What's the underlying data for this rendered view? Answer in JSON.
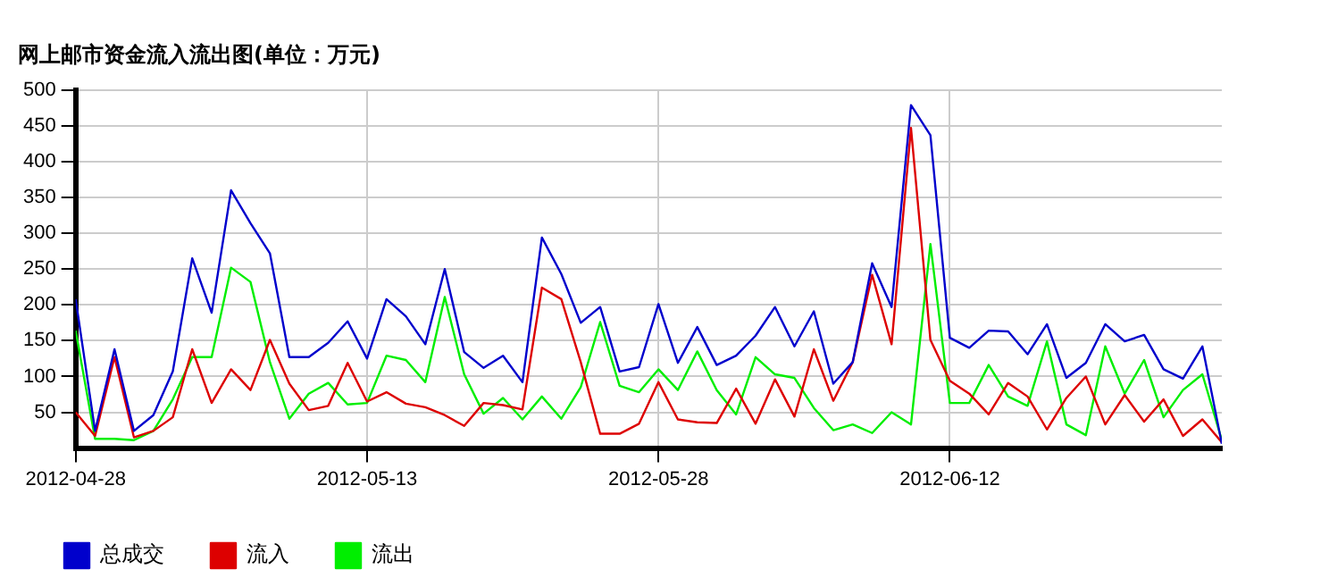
{
  "chart_data": {
    "type": "line",
    "title": "网上邮市资金流入流出图(单位：万元)",
    "x": [
      "2012-04-28",
      "2012-04-29",
      "2012-04-30",
      "2012-05-01",
      "2012-05-02",
      "2012-05-03",
      "2012-05-04",
      "2012-05-05",
      "2012-05-06",
      "2012-05-07",
      "2012-05-08",
      "2012-05-09",
      "2012-05-10",
      "2012-05-11",
      "2012-05-12",
      "2012-05-13",
      "2012-05-14",
      "2012-05-15",
      "2012-05-16",
      "2012-05-17",
      "2012-05-18",
      "2012-05-19",
      "2012-05-20",
      "2012-05-21",
      "2012-05-22",
      "2012-05-23",
      "2012-05-24",
      "2012-05-25",
      "2012-05-26",
      "2012-05-27",
      "2012-05-28",
      "2012-05-29",
      "2012-05-30",
      "2012-05-31",
      "2012-06-01",
      "2012-06-02",
      "2012-06-03",
      "2012-06-04",
      "2012-06-05",
      "2012-06-06",
      "2012-06-07",
      "2012-06-08",
      "2012-06-09",
      "2012-06-10",
      "2012-06-11",
      "2012-06-12",
      "2012-06-13",
      "2012-06-14",
      "2012-06-15",
      "2012-06-16",
      "2012-06-17",
      "2012-06-18",
      "2012-06-19",
      "2012-06-20",
      "2012-06-21",
      "2012-06-22",
      "2012-06-23",
      "2012-06-24",
      "2012-06-25",
      "2012-06-26"
    ],
    "series": [
      {
        "name": "总成交",
        "color": "#0000cc",
        "values": [
          208,
          24,
          138,
          24,
          46,
          107,
          265,
          189,
          360,
          314,
          272,
          127,
          127,
          147,
          177,
          125,
          208,
          184,
          145,
          250,
          134,
          112,
          129,
          92,
          294,
          243,
          175,
          197,
          107,
          113,
          201,
          119,
          169,
          116,
          129,
          157,
          197,
          142,
          191,
          90,
          120,
          258,
          197,
          479,
          437,
          154,
          140,
          164,
          163,
          131,
          173,
          98,
          119,
          173,
          149,
          158,
          110,
          97,
          142,
          6
        ]
      },
      {
        "name": "流入",
        "color": "#dd0000",
        "values": [
          50,
          17,
          127,
          15,
          24,
          43,
          138,
          63,
          110,
          81,
          151,
          90,
          53,
          59,
          119,
          65,
          78,
          62,
          57,
          46,
          31,
          63,
          60,
          54,
          224,
          208,
          120,
          20,
          20,
          34,
          92,
          40,
          36,
          35,
          83,
          34,
          96,
          44,
          138,
          66,
          120,
          242,
          145,
          447,
          151,
          94,
          76,
          47,
          91,
          72,
          26,
          70,
          100,
          33,
          74,
          37,
          68,
          17,
          40,
          8
        ]
      },
      {
        "name": "流出",
        "color": "#00ee00",
        "values": [
          164,
          13,
          13,
          11,
          24,
          68,
          127,
          127,
          252,
          232,
          120,
          41,
          76,
          91,
          61,
          63,
          129,
          123,
          92,
          211,
          103,
          48,
          70,
          40,
          72,
          41,
          85,
          176,
          87,
          78,
          110,
          81,
          135,
          81,
          47,
          127,
          103,
          98,
          56,
          25,
          33,
          21,
          50,
          33,
          285,
          63,
          63,
          116,
          72,
          59,
          149,
          33,
          18,
          142,
          76,
          123,
          43,
          81,
          103,
          11
        ]
      }
    ],
    "xlim": [
      "2012-04-28",
      "2012-06-26"
    ],
    "xticks": [
      "2012-04-28",
      "2012-05-13",
      "2012-05-28",
      "2012-06-12"
    ],
    "ylim": [
      0,
      500
    ],
    "yticks": [
      50,
      100,
      150,
      200,
      250,
      300,
      350,
      400,
      450,
      500
    ],
    "grid": true,
    "legend": "bottom",
    "marker": "none",
    "line_style": "solid"
  }
}
